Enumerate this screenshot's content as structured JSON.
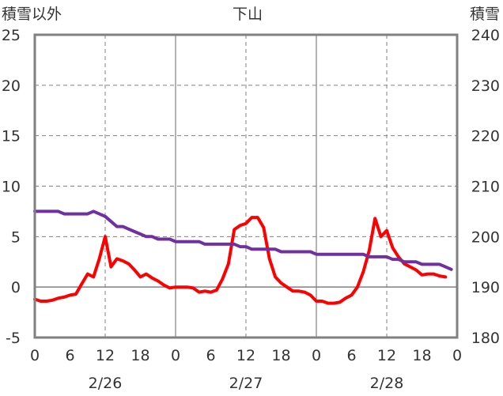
{
  "chart_data": {
    "type": "line",
    "title": "下山",
    "ylabel_left": "積雪以外",
    "ylabel_right": "積雪",
    "ylim_left": [
      -5,
      25
    ],
    "yticks_left": [
      "25",
      "20",
      "15",
      "10",
      "5",
      "0",
      "-5"
    ],
    "ylim_right": [
      180,
      240
    ],
    "yticks_right": [
      "240",
      "230",
      "220",
      "210",
      "200",
      "190",
      "180"
    ],
    "xlim": [
      0,
      72
    ],
    "xtick_labels": [
      "0",
      "6",
      "12",
      "18",
      "0",
      "6",
      "12",
      "18",
      "0",
      "6",
      "12",
      "18",
      "0"
    ],
    "day_labels": [
      "2/26",
      "2/27",
      "2/28"
    ],
    "grid": true,
    "series": [
      {
        "axis": "left",
        "color": "#ff0000",
        "x": [
          0,
          1,
          2,
          3,
          4,
          5,
          6,
          7,
          8,
          9,
          10,
          11,
          12,
          13,
          14,
          15,
          16,
          17,
          18,
          19,
          20,
          21,
          22,
          23,
          24,
          25,
          26,
          27,
          28,
          29,
          30,
          31,
          32,
          33,
          34,
          35,
          36,
          37,
          38,
          39,
          40,
          41,
          42,
          43,
          44,
          45,
          46,
          47,
          48,
          49,
          50,
          51,
          52,
          53,
          54,
          55,
          56,
          57,
          58,
          59,
          60,
          61,
          62,
          63,
          64,
          65,
          66,
          67,
          68,
          69,
          70,
          71
        ],
        "y": [
          -1.2,
          -1.4,
          -1.4,
          -1.3,
          -1.1,
          -1.0,
          -0.8,
          -0.7,
          0.3,
          1.3,
          1.0,
          2.8,
          5.0,
          2.0,
          2.8,
          2.6,
          2.3,
          1.7,
          1.0,
          1.3,
          0.9,
          0.6,
          0.2,
          -0.1,
          0.0,
          0.0,
          0.0,
          -0.1,
          -0.5,
          -0.4,
          -0.5,
          -0.3,
          0.8,
          2.3,
          5.7,
          6.1,
          6.3,
          6.9,
          6.9,
          5.9,
          2.8,
          1.0,
          0.4,
          0.0,
          -0.4,
          -0.4,
          -0.5,
          -0.8,
          -1.4,
          -1.4,
          -1.6,
          -1.6,
          -1.5,
          -1.1,
          -0.8,
          0.0,
          1.5,
          3.6,
          6.8,
          5.0,
          5.6,
          3.9,
          3.0,
          2.3,
          2.0,
          1.7,
          1.2,
          1.3,
          1.3,
          1.1,
          1.0,
          null
        ]
      },
      {
        "axis": "right",
        "color": "#7030a0",
        "x": [
          0,
          1,
          2,
          3,
          4,
          5,
          6,
          7,
          8,
          9,
          10,
          11,
          12,
          13,
          14,
          15,
          16,
          17,
          18,
          19,
          20,
          21,
          22,
          23,
          24,
          25,
          26,
          27,
          28,
          29,
          30,
          31,
          32,
          33,
          34,
          35,
          36,
          37,
          38,
          39,
          40,
          41,
          42,
          43,
          44,
          45,
          46,
          47,
          48,
          49,
          50,
          51,
          52,
          53,
          54,
          55,
          56,
          57,
          58,
          59,
          60,
          61,
          62,
          63,
          64,
          65,
          66,
          67,
          68,
          69,
          70,
          71
        ],
        "y": [
          205,
          205,
          205,
          205,
          205,
          204.5,
          204.5,
          204.5,
          204.5,
          204.5,
          205,
          204.5,
          204,
          203,
          202,
          202,
          201.5,
          201,
          200.5,
          200,
          200,
          199.5,
          199.5,
          199.5,
          199,
          199,
          199,
          199,
          199,
          198.5,
          198.5,
          198.5,
          198.5,
          198.5,
          198.5,
          198,
          198,
          197.5,
          197.5,
          197.5,
          197.5,
          197.5,
          197,
          197,
          197,
          197,
          197,
          197,
          196.5,
          196.5,
          196.5,
          196.5,
          196.5,
          196.5,
          196.5,
          196.5,
          196.5,
          196,
          196,
          196,
          196,
          195.5,
          195.5,
          195,
          195,
          195,
          194.5,
          194.5,
          194.5,
          194.5,
          194,
          193.5
        ]
      }
    ]
  }
}
